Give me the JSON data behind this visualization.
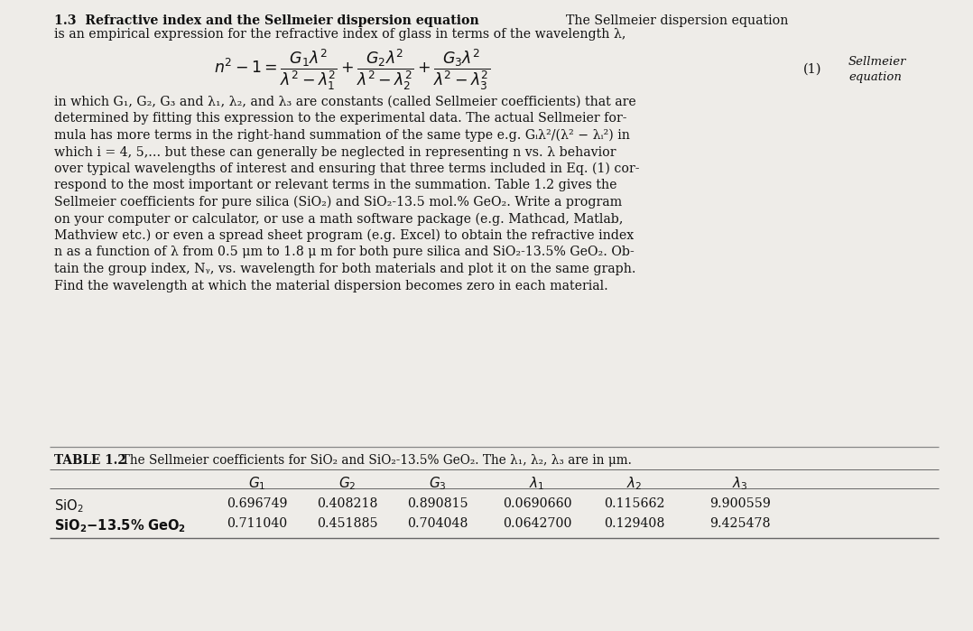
{
  "bg_color": "#eeece8",
  "title_bold": "1.3  Refractive index and the Sellmeier dispersion equation",
  "title_cont": "  The Sellmeier dispersion equation",
  "title_line2": "is an empirical expression for the refractive index of glass in terms of the wavelength λ,",
  "eq_annotation_line1": "Sellmeier",
  "eq_annotation_line2": "equation",
  "body_lines": [
    "in which G₁, G₂, G₃ and λ₁, λ₂, and λ₃ are constants (called Sellmeier coefficients) that are",
    "determined by fitting this expression to the experimental data. The actual Sellmeier for-",
    "mula has more terms in the right-hand summation of the same type e.g. Gᵢλ²/(λ² − λᵢ²) in",
    "which i = 4, 5,... but these can generally be neglected in representing n vs. λ behavior",
    "over typical wavelengths of interest and ensuring that three terms included in Eq. (1) cor-",
    "respond to the most important or relevant terms in the summation. Table 1.2 gives the",
    "Sellmeier coefficients for pure silica (SiO₂) and SiO₂-13.5 mol.% GeO₂. Write a program",
    "on your computer or calculator, or use a math software package (e.g. Mathcad, Matlab,",
    "Mathview etc.) or even a spread sheet program (e.g. Excel) to obtain the refractive index",
    "n as a function of λ from 0.5 μm to 1.8 μ m for both pure silica and SiO₂-13.5% GeO₂. Ob-",
    "tain the group index, Nᵧ, vs. wavelength for both materials and plot it on the same graph.",
    "Find the wavelength at which the material dispersion becomes zero in each material."
  ],
  "table_caption_bold": "TABLE 1.2",
  "table_caption_normal": "  The Sellmeier coefficients for SiO₂ and SiO₂-13.5% GeO₂. The λ₁, λ₂, λ₃ are in μm.",
  "col_headers": [
    "G_{1}",
    "G_{2}",
    "G_{3}",
    "\\lambda_{1}",
    "\\lambda_{2}",
    "\\lambda_{3}"
  ],
  "row_label1": "SiO₂",
  "row_label2": "SiO₂-13.5% GeO₂",
  "data_rows": [
    [
      "0.696749",
      "0.408218",
      "0.890815",
      "0.0690660",
      "0.115662",
      "9.900559"
    ],
    [
      "0.711040",
      "0.451885",
      "0.704048",
      "0.0642700",
      "0.129408",
      "9.425478"
    ]
  ],
  "text_color": "#111111"
}
